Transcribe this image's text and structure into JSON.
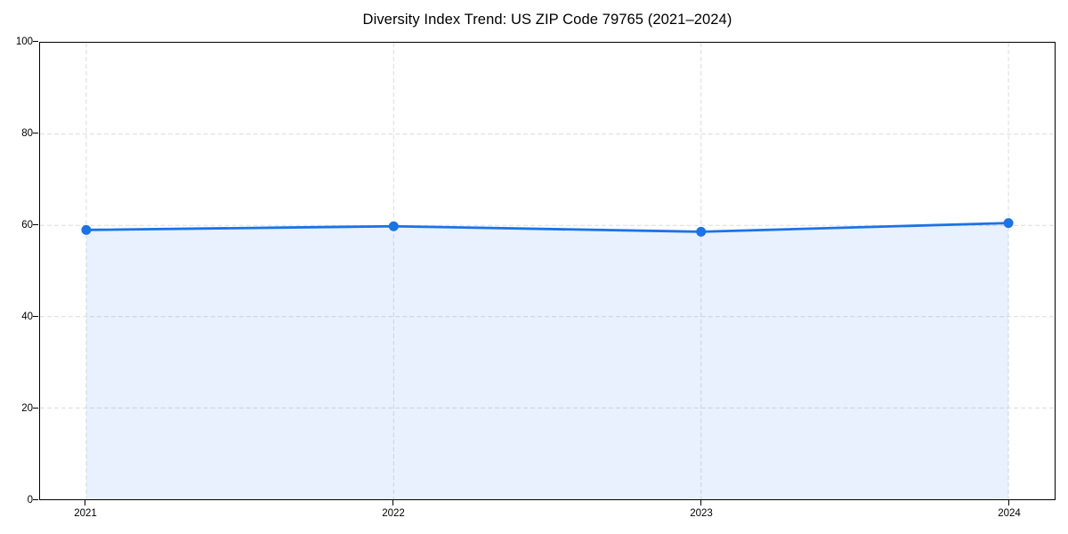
{
  "chart_data": {
    "type": "line",
    "title": "Diversity Index Trend: US ZIP Code 79765 (2021–2024)",
    "x": [
      "2021",
      "2022",
      "2023",
      "2024"
    ],
    "series": [
      {
        "name": "Diversity Index",
        "values": [
          59.0,
          59.8,
          58.6,
          60.5
        ]
      }
    ],
    "xlabel": "",
    "ylabel": "",
    "ylim": [
      0,
      100
    ],
    "yticks": [
      0,
      20,
      40,
      60,
      80,
      100
    ],
    "ytick_labels": [
      "0",
      "20",
      "40",
      "60",
      "80",
      "100"
    ],
    "xtick_labels": [
      "2021",
      "2022",
      "2023",
      "2024"
    ],
    "grid": "dashed",
    "legend_position": "none",
    "marker": "circle",
    "area_fill": true,
    "colors": {
      "line": "#1a73e8",
      "marker": "#1a73e8",
      "fill": "rgba(26,115,232,0.10)",
      "grid": "#dcdcdc",
      "spine": "#000000",
      "text": "#000000",
      "background": "#ffffff"
    }
  }
}
